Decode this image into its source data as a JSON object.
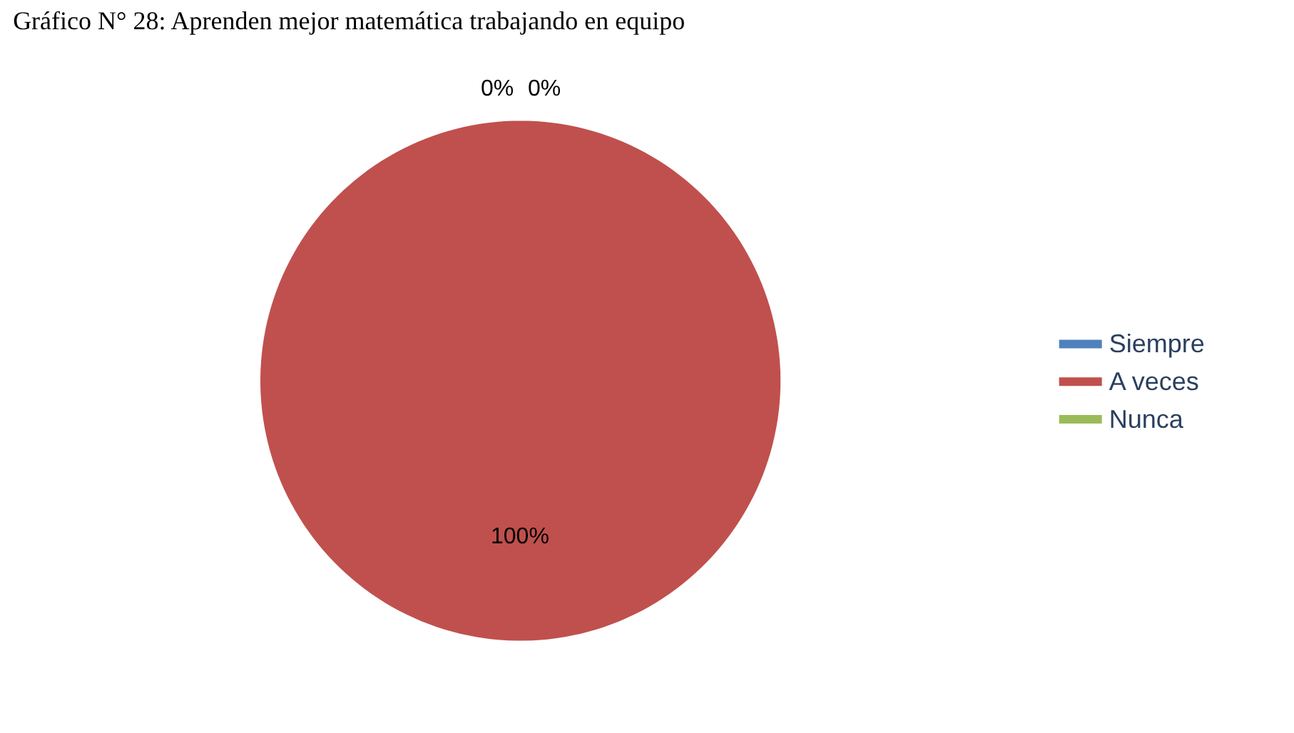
{
  "chart_data": {
    "type": "pie",
    "title": "Gráfico N° 28: Aprenden mejor matemática trabajando en equipo",
    "categories": [
      "Siempre",
      "A veces",
      "Nunca"
    ],
    "values": [
      0,
      100,
      0
    ],
    "colors": [
      "#4f81bd",
      "#c0504d",
      "#9bbb59"
    ],
    "value_labels": [
      "0%",
      "100%",
      "0%"
    ],
    "legend": "right"
  }
}
